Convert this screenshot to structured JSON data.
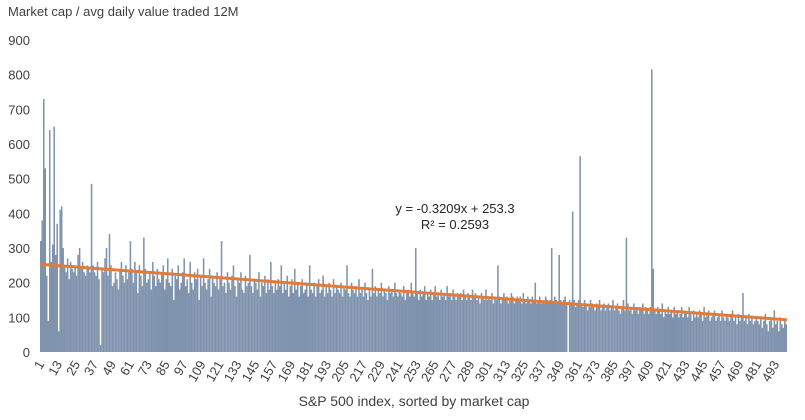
{
  "chart_data": {
    "type": "bar",
    "title": "Market cap / avg daily value traded 12M",
    "xlabel": "S&P 500 index, sorted by market cap",
    "ylabel": "",
    "ylim": [
      0,
      900
    ],
    "yticks": [
      0,
      100,
      200,
      300,
      400,
      500,
      600,
      700,
      800,
      900
    ],
    "xticks": [
      1,
      13,
      25,
      37,
      49,
      61,
      73,
      85,
      97,
      109,
      121,
      133,
      145,
      157,
      169,
      181,
      193,
      205,
      217,
      229,
      241,
      253,
      265,
      277,
      289,
      301,
      313,
      325,
      337,
      349,
      361,
      373,
      385,
      397,
      409,
      421,
      433,
      445,
      457,
      469,
      481,
      493
    ],
    "grid": false,
    "bar_color": "#7f93ad",
    "trendline": {
      "slope": -0.3209,
      "intercept": 253.3,
      "color": "#e07b39",
      "equation": "y = -0.3209x + 253.3",
      "r2": "R² = 0.2593"
    },
    "values": [
      320,
      380,
      730,
      530,
      220,
      90,
      640,
      260,
      310,
      650,
      280,
      370,
      60,
      410,
      420,
      300,
      250,
      230,
      270,
      210,
      260,
      240,
      230,
      250,
      220,
      280,
      300,
      240,
      260,
      230,
      220,
      250,
      240,
      230,
      485,
      250,
      230,
      220,
      260,
      210,
      20,
      240,
      230,
      270,
      300,
      220,
      340,
      250,
      190,
      200,
      230,
      210,
      180,
      240,
      260,
      220,
      200,
      250,
      210,
      230,
      320,
      240,
      200,
      260,
      230,
      170,
      250,
      220,
      190,
      330,
      240,
      200,
      210,
      230,
      180,
      260,
      220,
      190,
      240,
      210,
      200,
      230,
      250,
      180,
      210,
      270,
      200,
      190,
      240,
      150,
      220,
      210,
      250,
      180,
      200,
      230,
      270,
      190,
      210,
      170,
      260,
      200,
      180,
      230,
      210,
      240,
      150,
      220,
      190,
      270,
      200,
      180,
      210,
      240,
      160,
      220,
      200,
      190,
      230,
      180,
      210,
      320,
      190,
      200,
      170,
      230,
      200,
      180,
      220,
      250,
      190,
      160,
      210,
      200,
      230,
      180,
      170,
      220,
      190,
      200,
      280,
      190,
      170,
      210,
      200,
      180,
      230,
      160,
      200,
      190,
      220,
      170,
      210,
      180,
      260,
      190,
      170,
      200,
      180,
      210,
      190,
      250,
      170,
      200,
      180,
      220,
      160,
      190,
      210,
      170,
      240,
      180,
      200,
      160,
      190,
      210,
      170,
      180,
      200,
      160,
      250,
      180,
      170,
      200,
      160,
      190,
      210,
      170,
      180,
      220,
      160,
      190,
      170,
      200,
      180,
      160,
      210,
      170,
      190,
      180,
      170,
      200,
      160,
      190,
      180,
      250,
      170,
      160,
      200,
      180,
      170,
      190,
      160,
      210,
      170,
      180,
      160,
      200,
      170,
      150,
      180,
      160,
      240,
      170,
      190,
      160,
      180,
      170,
      200,
      160,
      180,
      170,
      150,
      190,
      170,
      180,
      160,
      200,
      170,
      160,
      180,
      170,
      160,
      190,
      150,
      170,
      180,
      160,
      200,
      170,
      160,
      300,
      170,
      150,
      180,
      160,
      170,
      190,
      150,
      170,
      160,
      180,
      150,
      170,
      190,
      160,
      170,
      150,
      180,
      160,
      170,
      150,
      190,
      160,
      170,
      150,
      180,
      160,
      150,
      170,
      160,
      170,
      150,
      180,
      160,
      150,
      170,
      160,
      150,
      180,
      160,
      170,
      150,
      160,
      140,
      170,
      160,
      150,
      180,
      150,
      160,
      150,
      170,
      140,
      160,
      150,
      250,
      160,
      140,
      150,
      170,
      150,
      160,
      140,
      150,
      170,
      160,
      140,
      150,
      160,
      150,
      160,
      140,
      170,
      150,
      140,
      160,
      150,
      140,
      160,
      150,
      200,
      140,
      150,
      160,
      140,
      150,
      140,
      160,
      150,
      140,
      150,
      300,
      140,
      160,
      150,
      140,
      280,
      150,
      140,
      150,
      160,
      140,
      0,
      150,
      140,
      405,
      150,
      130,
      140,
      150,
      565,
      140,
      130,
      150,
      140,
      120,
      130,
      150,
      140,
      130,
      120,
      140,
      130,
      150,
      120,
      130,
      140,
      120,
      130,
      140,
      120,
      130,
      150,
      120,
      130,
      140,
      120,
      110,
      130,
      150,
      120,
      330,
      140,
      120,
      130,
      110,
      140,
      120,
      130,
      110,
      130,
      120,
      140,
      110,
      130,
      120,
      110,
      130,
      815,
      240,
      120,
      110,
      130,
      120,
      110,
      140,
      100,
      120,
      110,
      130,
      110,
      120,
      100,
      130,
      110,
      120,
      100,
      110,
      130,
      100,
      120,
      110,
      100,
      130,
      110,
      90,
      120,
      100,
      110,
      100,
      120,
      110,
      90,
      130,
      100,
      110,
      120,
      90,
      100,
      110,
      120,
      90,
      100,
      110,
      90,
      120,
      100,
      90,
      110,
      100,
      90,
      110,
      120,
      90,
      100,
      80,
      110,
      90,
      100,
      170,
      90,
      100,
      80,
      110,
      90,
      100,
      80,
      90,
      100,
      90,
      80,
      100,
      70,
      90,
      110,
      80,
      60,
      90,
      100,
      70,
      120,
      80,
      90,
      60,
      100,
      80,
      70,
      90,
      80
    ]
  }
}
